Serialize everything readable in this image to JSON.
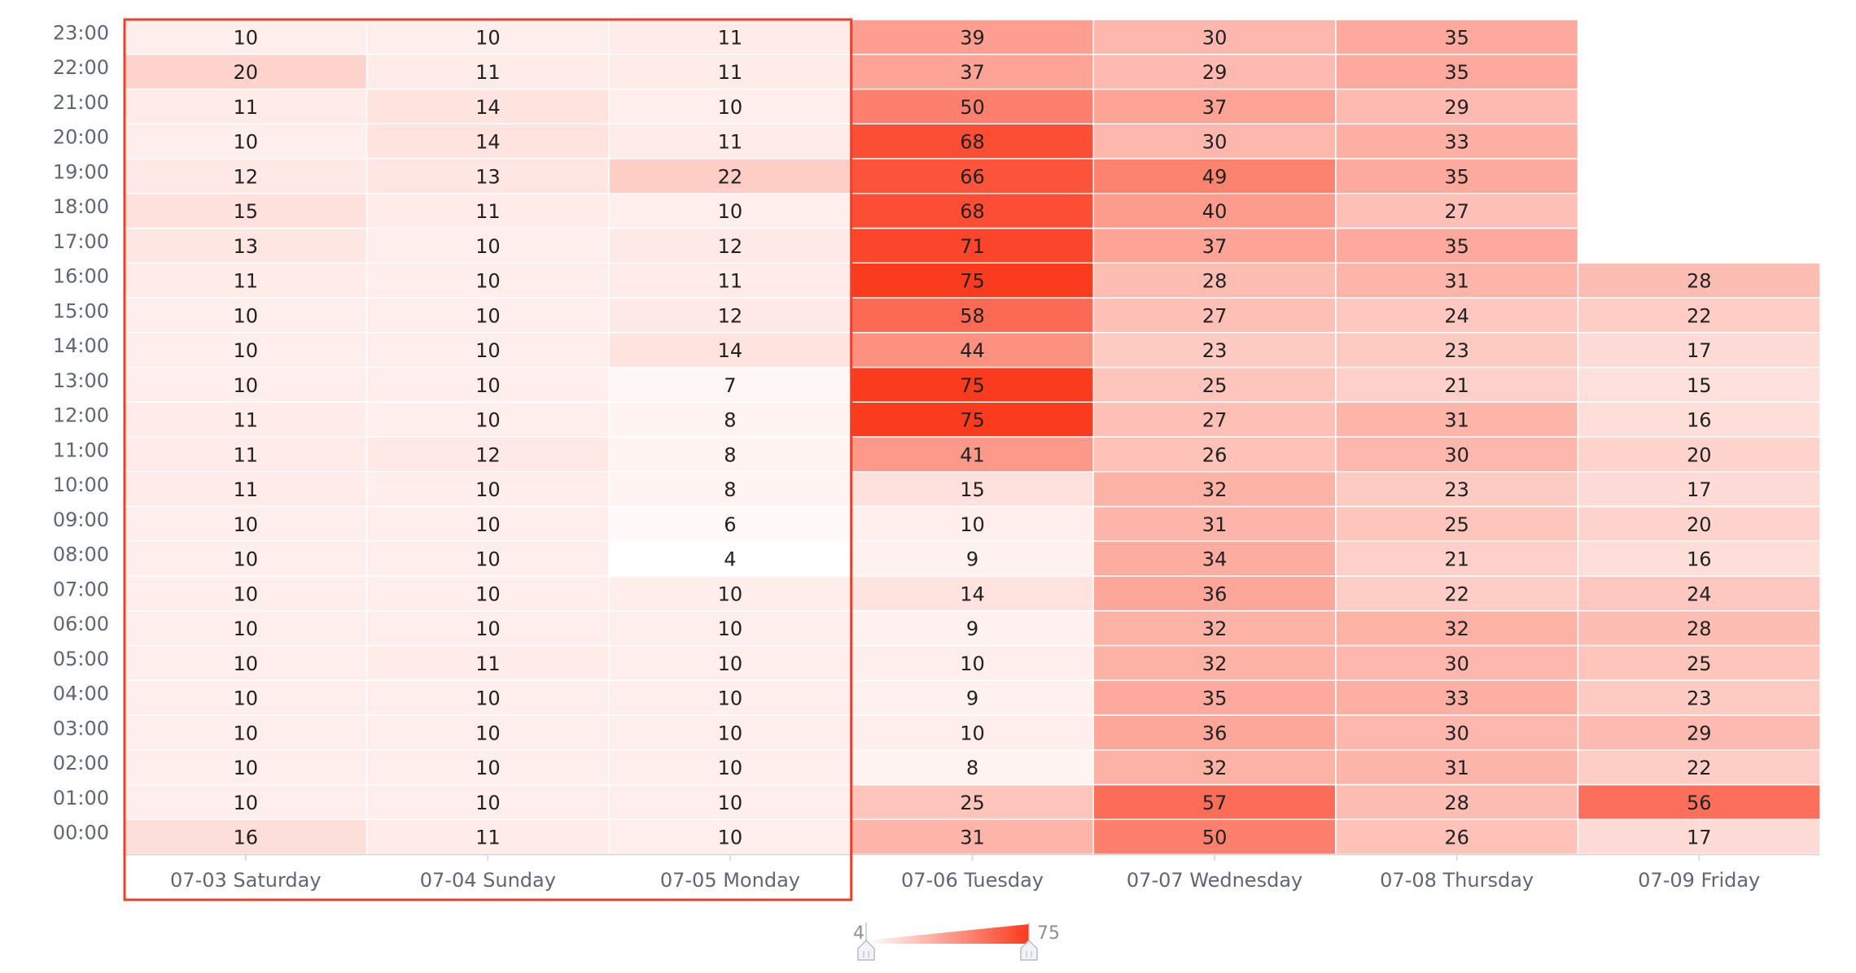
{
  "chart_data": {
    "type": "heatmap",
    "title": "",
    "xlabel": "",
    "ylabel": "",
    "x_categories": [
      "07-03 Saturday",
      "07-04 Sunday",
      "07-05 Monday",
      "07-06 Tuesday",
      "07-07 Wednesday",
      "07-08 Thursday",
      "07-09 Friday"
    ],
    "y_categories": [
      "00:00",
      "01:00",
      "02:00",
      "03:00",
      "04:00",
      "05:00",
      "06:00",
      "07:00",
      "08:00",
      "09:00",
      "10:00",
      "11:00",
      "12:00",
      "13:00",
      "14:00",
      "15:00",
      "16:00",
      "17:00",
      "18:00",
      "19:00",
      "20:00",
      "21:00",
      "22:00",
      "23:00"
    ],
    "values": [
      [
        16,
        11,
        10,
        31,
        50,
        26,
        17
      ],
      [
        10,
        10,
        10,
        25,
        57,
        28,
        56
      ],
      [
        10,
        10,
        10,
        8,
        32,
        31,
        22
      ],
      [
        10,
        10,
        10,
        10,
        36,
        30,
        29
      ],
      [
        10,
        10,
        10,
        9,
        35,
        33,
        23
      ],
      [
        10,
        11,
        10,
        10,
        32,
        30,
        25
      ],
      [
        10,
        10,
        10,
        9,
        32,
        32,
        28
      ],
      [
        10,
        10,
        10,
        14,
        36,
        22,
        24
      ],
      [
        10,
        10,
        4,
        9,
        34,
        21,
        16
      ],
      [
        10,
        10,
        6,
        10,
        31,
        25,
        20
      ],
      [
        11,
        10,
        8,
        15,
        32,
        23,
        17
      ],
      [
        11,
        12,
        8,
        41,
        26,
        30,
        20
      ],
      [
        11,
        10,
        8,
        75,
        27,
        31,
        16
      ],
      [
        10,
        10,
        7,
        75,
        25,
        21,
        15
      ],
      [
        10,
        10,
        14,
        44,
        23,
        23,
        17
      ],
      [
        10,
        10,
        12,
        58,
        27,
        24,
        22
      ],
      [
        11,
        10,
        11,
        75,
        28,
        31,
        28
      ],
      [
        13,
        10,
        12,
        71,
        37,
        35,
        null
      ],
      [
        15,
        11,
        10,
        68,
        40,
        27,
        null
      ],
      [
        12,
        13,
        22,
        66,
        49,
        35,
        null
      ],
      [
        10,
        14,
        11,
        68,
        30,
        33,
        null
      ],
      [
        11,
        14,
        10,
        50,
        37,
        29,
        null
      ],
      [
        20,
        11,
        11,
        37,
        29,
        35,
        null
      ],
      [
        10,
        10,
        11,
        39,
        30,
        35,
        null
      ]
    ],
    "visual_map": {
      "min": 4,
      "max": 75,
      "min_label": "4",
      "max_label": "75",
      "color_low": "#ffffff",
      "color_high": "#fb3b1e"
    },
    "highlight": {
      "x_start": "07-03 Saturday",
      "x_end": "07-05 Monday",
      "color": "#e8412c"
    },
    "colors": {
      "cell_text": "#222222",
      "axis_label": "#5f6676",
      "axis_line": "#d0d3da",
      "cell_border": "#ffffff"
    }
  }
}
